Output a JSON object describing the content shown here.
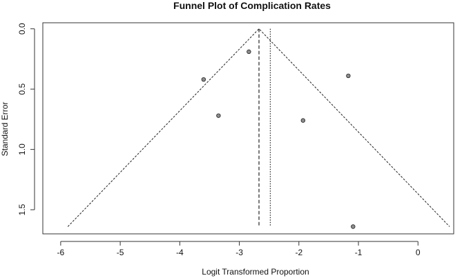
{
  "chart_data": {
    "type": "scatter",
    "title": "Funnel Plot of Complication Rates",
    "xlabel": "Logit Transformed Proportion",
    "ylabel": "Standard Error",
    "xlim": [
      -6.3,
      0.6
    ],
    "ylim": [
      1.7,
      -0.05
    ],
    "y_reversed": true,
    "x_ticks": [
      -6,
      -5,
      -4,
      -3,
      -2,
      -1,
      0
    ],
    "x_tick_labels": [
      "-6",
      "-5",
      "-4",
      "-3",
      "-2",
      "-1",
      "0"
    ],
    "y_ticks": [
      0.0,
      0.5,
      1.0,
      1.5
    ],
    "y_tick_labels": [
      "0.0",
      "0.5",
      "1.0",
      "1.5"
    ],
    "points": [
      {
        "x": -2.84,
        "y": 0.19
      },
      {
        "x": -3.6,
        "y": 0.42
      },
      {
        "x": -1.17,
        "y": 0.39
      },
      {
        "x": -3.35,
        "y": 0.72
      },
      {
        "x": -1.93,
        "y": 0.76
      },
      {
        "x": -1.09,
        "y": 1.64
      }
    ],
    "funnel": {
      "apex": {
        "x": -2.67,
        "y": 0.0
      },
      "left_base": {
        "x": -5.88,
        "y": 1.64
      },
      "right_base": {
        "x": 0.53,
        "y": 1.64
      },
      "style": "dashed"
    },
    "reference_lines": [
      {
        "x": -2.67,
        "y_range": [
          0.0,
          1.64
        ],
        "style": "dashed"
      },
      {
        "x": -2.48,
        "y_range": [
          0.0,
          1.64
        ],
        "style": "dotted"
      }
    ],
    "grid": false,
    "point_color": "#8c8c8c"
  }
}
